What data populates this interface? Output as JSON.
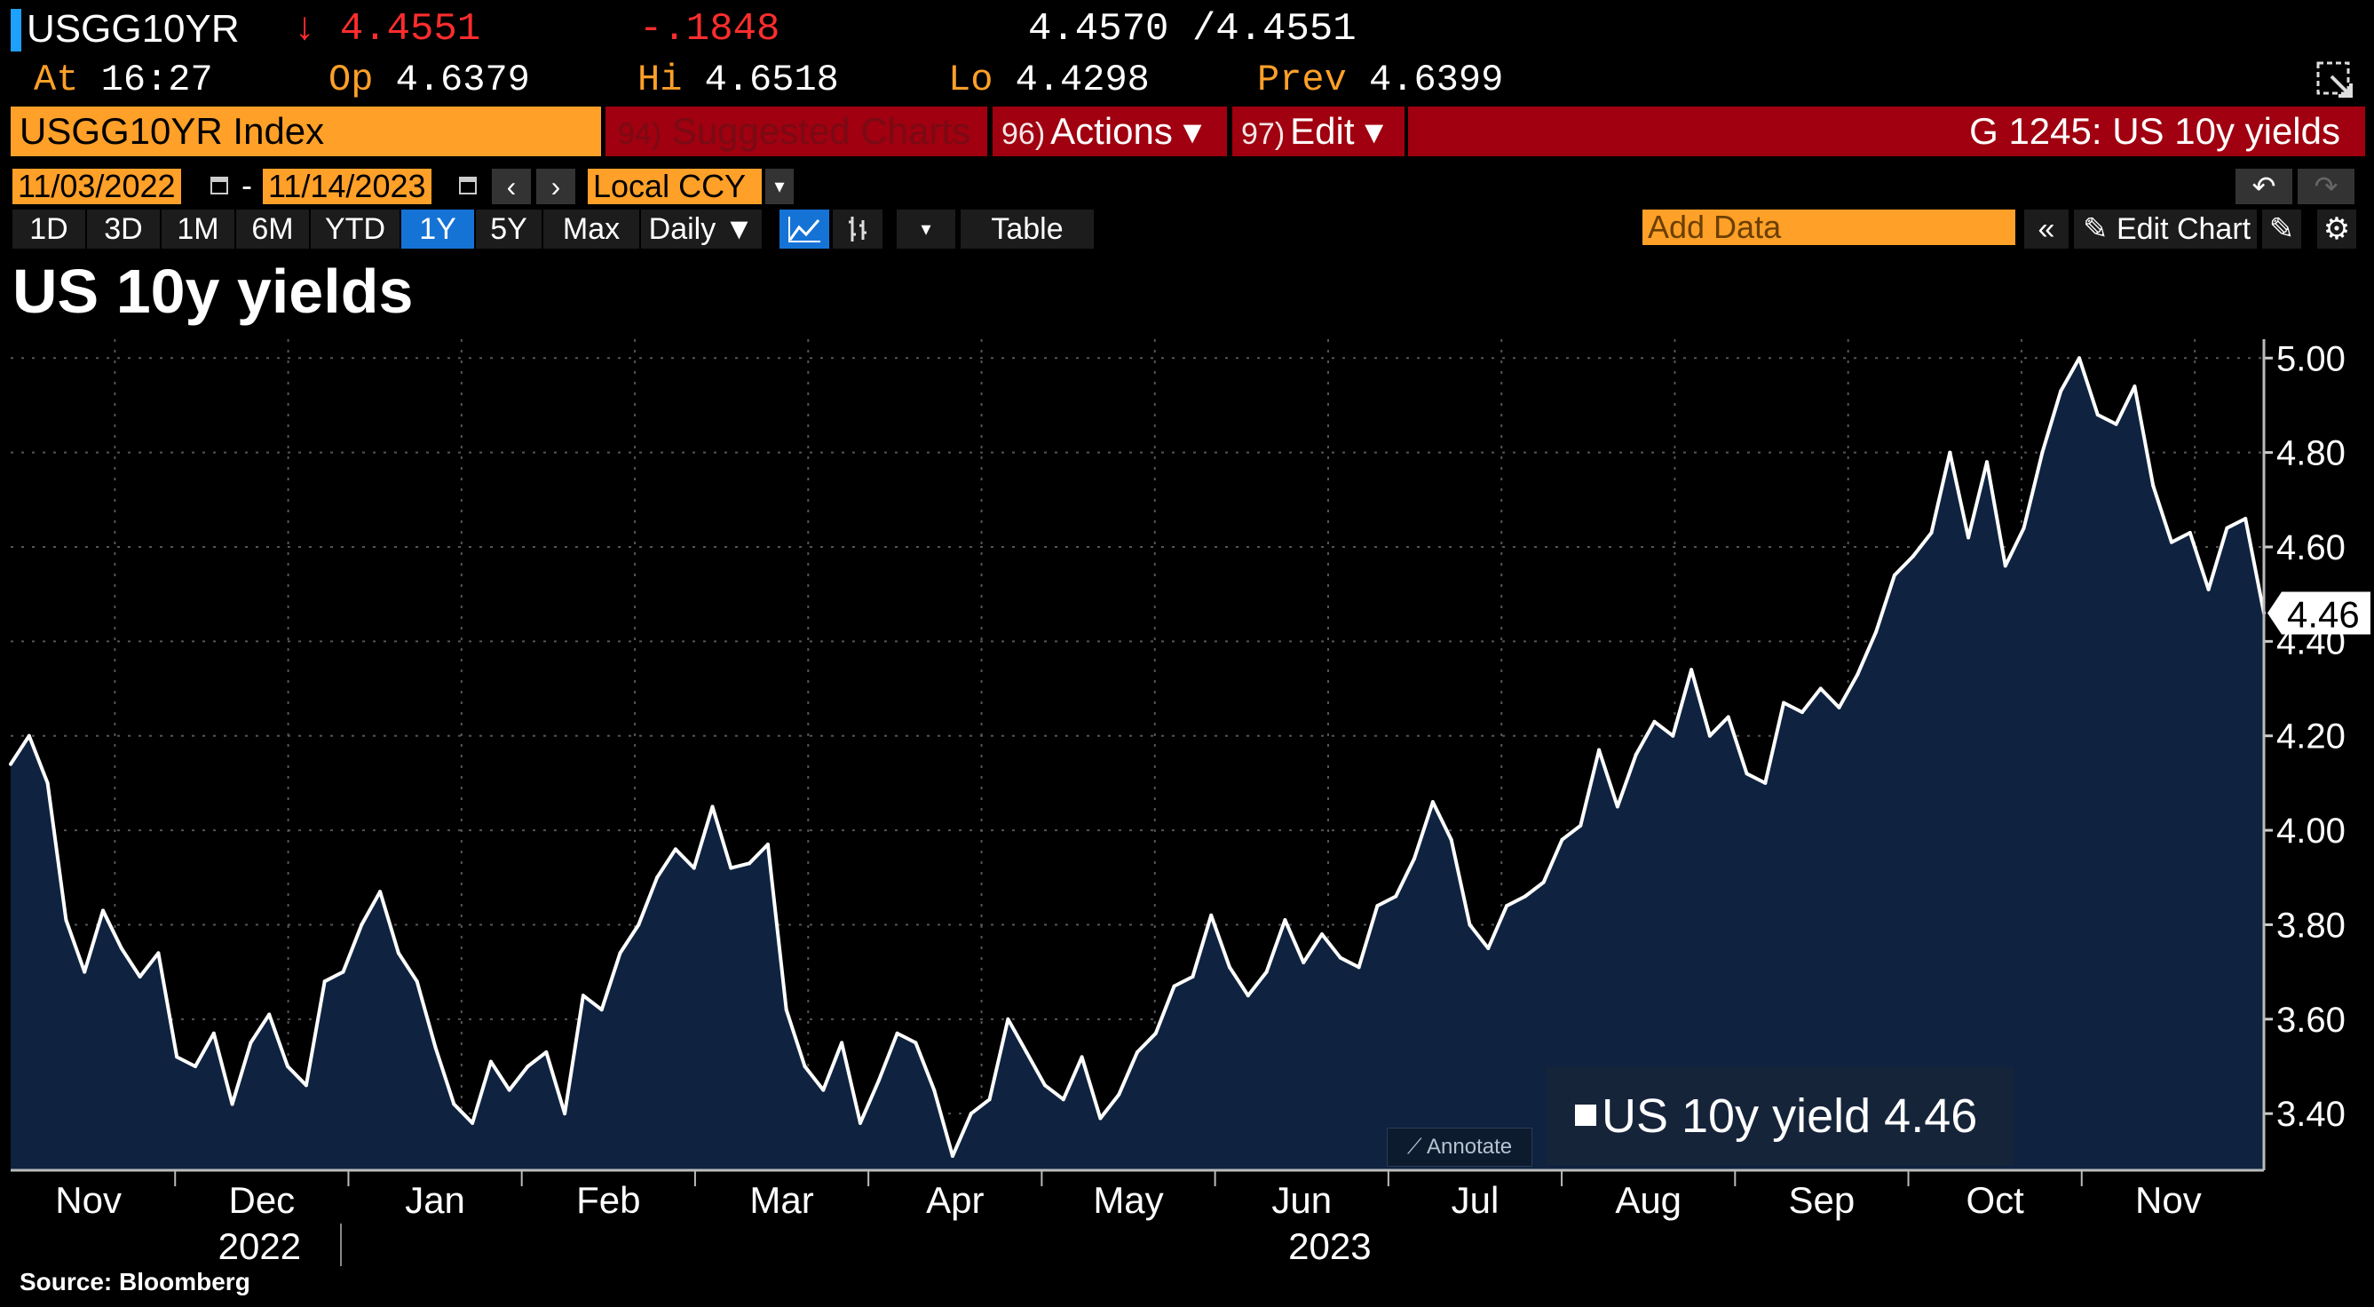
{
  "quote": {
    "ticker": "USGG10YR",
    "last_arrow": "↓",
    "last": "4.4551",
    "change": "-.1848",
    "bid_ask": "4.4570 /4.4551",
    "at_label": "At",
    "at_time": "16:27",
    "op_label": "Op",
    "op": "4.6379",
    "hi_label": "Hi",
    "hi": "4.6518",
    "lo_label": "Lo",
    "lo": "4.4298",
    "prev_label": "Prev",
    "prev": "4.6399"
  },
  "command": {
    "security": "USGG10YR Index",
    "suggested_num": "94)",
    "suggested": "Suggested Charts",
    "actions_num": "96)",
    "actions": "Actions ▾",
    "edit_num": "97)",
    "edit": "Edit ▾",
    "page_title": "G 1245: US 10y yields"
  },
  "dates": {
    "start": "11/03/2022",
    "sep": "-",
    "end": "11/14/2023",
    "currency": "Local CCY"
  },
  "ranges": [
    "1D",
    "3D",
    "1M",
    "6M",
    "YTD",
    "1Y",
    "5Y",
    "Max"
  ],
  "active_range": "1Y",
  "toolbar": {
    "frequency": "Daily ▼",
    "table": "Table",
    "add_data_placeholder": "Add Data",
    "edit_chart": "Edit Chart"
  },
  "colors": {
    "accent_orange": "#ffa028",
    "bloomberg_red": "#a0000f",
    "down_red": "#ff2d2d",
    "active_blue": "#1673d6",
    "area_fill": "#0f2340",
    "line": "#ffffff"
  },
  "chart_data": {
    "type": "area",
    "title": "US 10y yields",
    "ylim": [
      3.28,
      5.04
    ],
    "yticks": [
      "5.00",
      "4.80",
      "4.60",
      "4.40",
      "4.20",
      "4.00",
      "3.80",
      "3.60",
      "3.40"
    ],
    "last_value_label": "4.46",
    "months": [
      "Nov",
      "Dec",
      "Jan",
      "Feb",
      "Mar",
      "Apr",
      "May",
      "Jun",
      "Jul",
      "Aug",
      "Sep",
      "Oct",
      "Nov"
    ],
    "years": [
      "2022",
      "2023"
    ],
    "grid": true,
    "legend_placement": "bottom-right",
    "series": [
      {
        "name": "US 10y yield",
        "last": "4.46",
        "values": [
          4.14,
          4.2,
          4.1,
          3.81,
          3.7,
          3.83,
          3.75,
          3.69,
          3.74,
          3.52,
          3.5,
          3.57,
          3.42,
          3.55,
          3.61,
          3.5,
          3.46,
          3.68,
          3.7,
          3.8,
          3.87,
          3.74,
          3.68,
          3.54,
          3.42,
          3.38,
          3.51,
          3.45,
          3.5,
          3.53,
          3.4,
          3.65,
          3.62,
          3.74,
          3.8,
          3.9,
          3.96,
          3.92,
          4.05,
          3.92,
          3.93,
          3.97,
          3.62,
          3.5,
          3.45,
          3.55,
          3.38,
          3.47,
          3.57,
          3.55,
          3.45,
          3.31,
          3.4,
          3.43,
          3.6,
          3.53,
          3.46,
          3.43,
          3.52,
          3.39,
          3.44,
          3.53,
          3.57,
          3.67,
          3.69,
          3.82,
          3.71,
          3.65,
          3.7,
          3.81,
          3.72,
          3.78,
          3.73,
          3.71,
          3.84,
          3.86,
          3.94,
          4.06,
          3.98,
          3.8,
          3.75,
          3.84,
          3.86,
          3.89,
          3.98,
          4.01,
          4.17,
          4.05,
          4.16,
          4.23,
          4.2,
          4.34,
          4.2,
          4.24,
          4.12,
          4.1,
          4.27,
          4.25,
          4.3,
          4.26,
          4.33,
          4.42,
          4.54,
          4.58,
          4.63,
          4.8,
          4.62,
          4.78,
          4.56,
          4.64,
          4.8,
          4.93,
          5.0,
          4.88,
          4.86,
          4.94,
          4.73,
          4.61,
          4.63,
          4.51,
          4.64,
          4.66,
          4.46
        ]
      }
    ]
  },
  "annotate_label": "Annotate",
  "source": "Source: Bloomberg"
}
